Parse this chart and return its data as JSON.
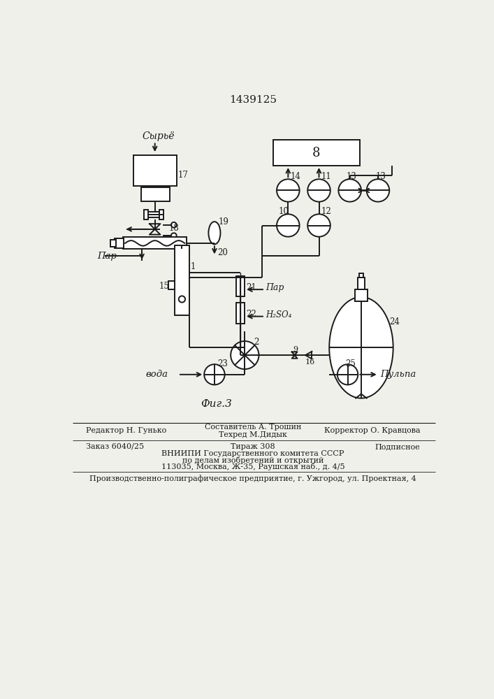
{
  "title": "1439125",
  "fig_label": "Фиг.3",
  "background_color": "#f0f0eb",
  "line_color": "#1a1a1a",
  "labels": {
    "syroe": "Сырьё",
    "par1": "Пар",
    "par2": "Пар",
    "voda": "вода",
    "pulpa": "Пульпа",
    "h2so4": "H₂SO₄",
    "block8": "8",
    "n17": "17",
    "n18": "18",
    "n19": "19",
    "n20": "20",
    "n1": "1",
    "n15": "15",
    "n14": "14",
    "n11": "11",
    "n13a": "13",
    "n13b": "13",
    "n10": "10",
    "n12": "12",
    "n21": "21",
    "n22": "22",
    "n2": "2",
    "n9": "9",
    "n16": "16",
    "n23": "23",
    "n24": "24",
    "n25": "25"
  },
  "footer": {
    "line1_left": "Редактор Н. Гунько",
    "line1_center": "Составитель А. Трошин",
    "line1_center2": "Техред М.Дидык",
    "line1_right": "Корректор О. Кравцова",
    "line2_left": "Заказ 6040/25",
    "line2_center": "Тираж 308",
    "line2_right": "Подписное",
    "line3": "ВНИИПИ Государственного комитета СССР",
    "line4": "по делам изобретений и открытий",
    "line5": "113035, Москва, Ж-35, Раушская наб., д. 4/5",
    "line6": "Производственно-полиграфическое предприятие, г. Ужгород, ул. Проектная, 4"
  }
}
